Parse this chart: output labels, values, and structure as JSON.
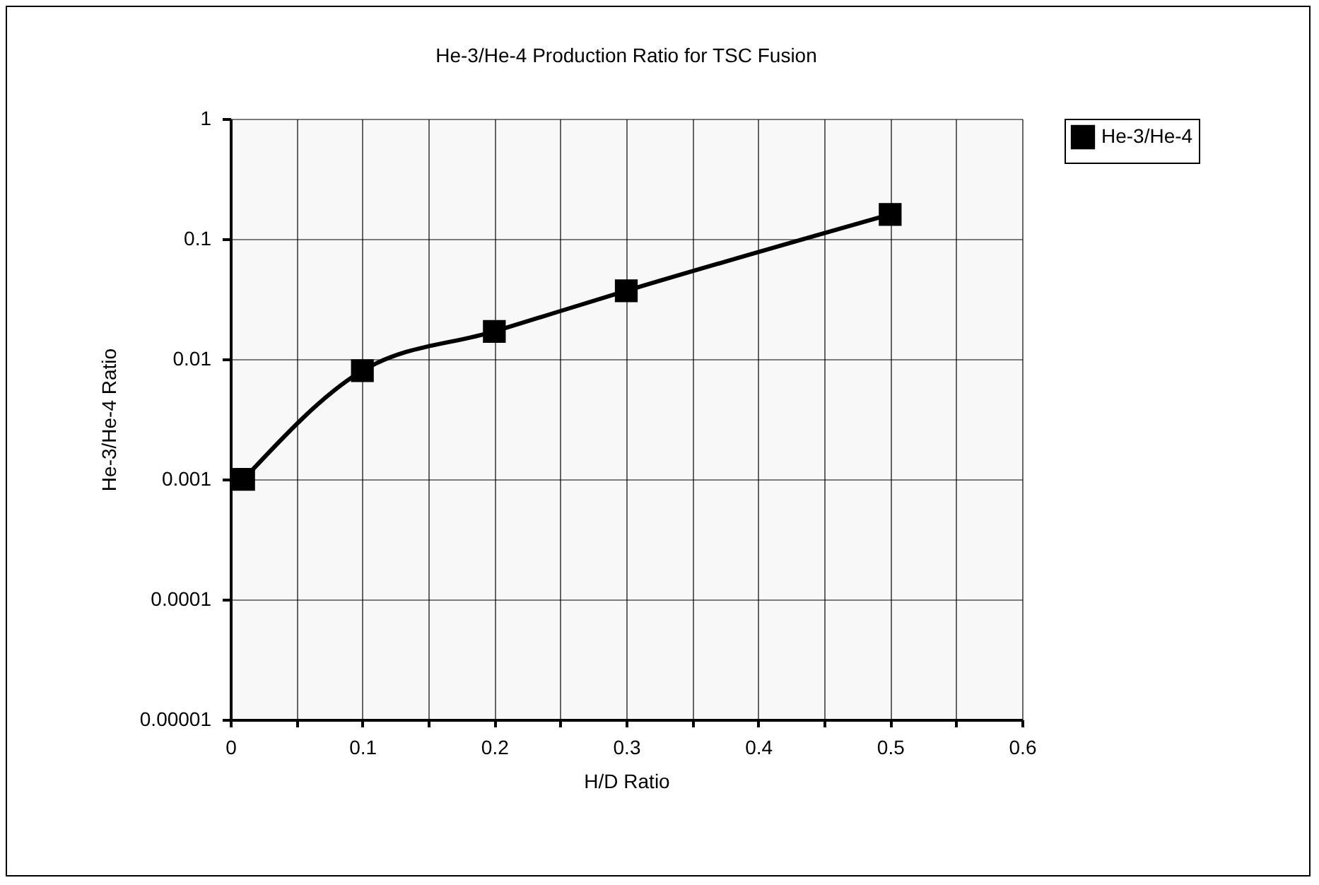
{
  "chart_data": {
    "type": "line",
    "title": "He-3/He-4 Production Ratio for TSC Fusion",
    "xlabel": "H/D Ratio",
    "ylabel": "He-3/He-4 Ratio",
    "x": [
      0.01,
      0.1,
      0.2,
      0.3,
      0.5
    ],
    "series": [
      {
        "name": "He-3/He-4",
        "color": "#000000",
        "values": [
          0.001,
          0.008,
          0.017,
          0.037,
          0.16
        ]
      }
    ],
    "log": "y",
    "xlim": [
      0,
      0.6
    ],
    "xticks": [
      0,
      {
        "value": 0.05,
        "label": null
      },
      0.1,
      {
        "value": 0.15,
        "label": null
      },
      0.2,
      {
        "value": 0.25,
        "label": null
      },
      0.3,
      {
        "value": 0.35,
        "label": null
      },
      0.4,
      {
        "value": 0.45,
        "label": null
      },
      0.5,
      {
        "value": 0.55,
        "label": null
      },
      0.6
    ],
    "ylim": [
      1e-05,
      1
    ],
    "yticks": [
      {
        "value": 1e-05,
        "label": "0.00001"
      },
      0.0001,
      0.001,
      0.01,
      0.1,
      1
    ],
    "grid": true,
    "legend": "right",
    "marker": "square",
    "line_style": "solid"
  }
}
